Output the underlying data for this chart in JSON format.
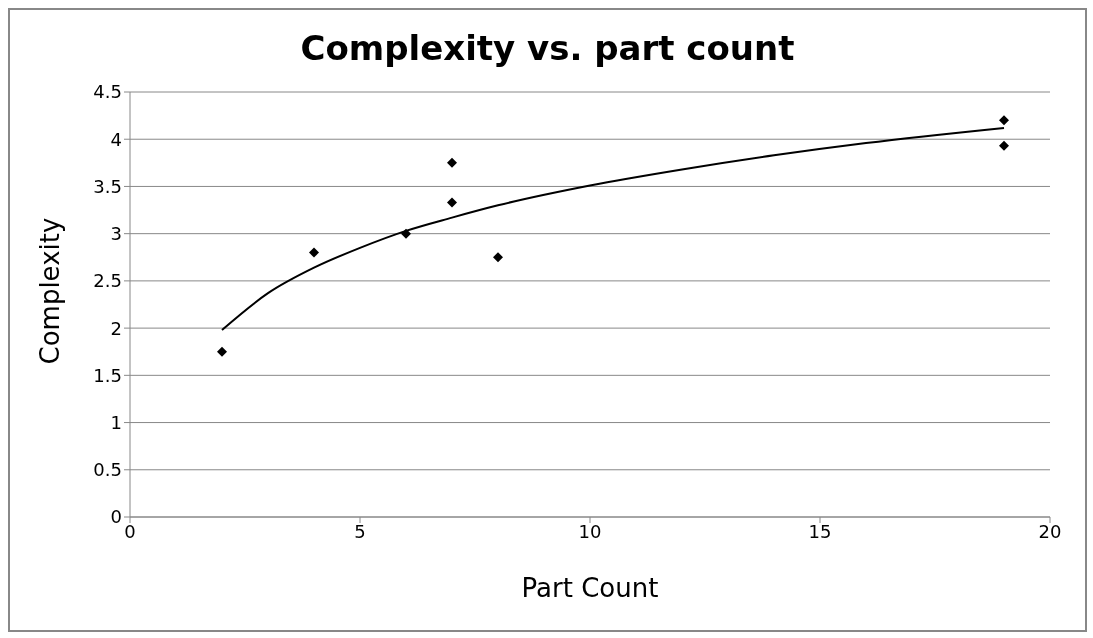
{
  "chart_data": {
    "type": "scatter",
    "title": "Complexity vs. part count",
    "xlabel": "Part Count",
    "ylabel": "Complexity",
    "series": [
      {
        "color": "#000000",
        "marker": "diamond",
        "x": [
          2,
          4,
          6,
          7,
          7,
          8,
          19,
          19
        ],
        "values": [
          1.75,
          2.8,
          3.0,
          3.75,
          3.33,
          2.75,
          4.2,
          3.93
        ]
      },
      {
        "type": "line",
        "color": "#000000",
        "marker": "none",
        "line_style": "solid",
        "x": [
          2,
          3,
          4,
          5,
          6,
          7,
          8,
          10,
          12,
          14,
          16,
          19
        ],
        "values": [
          1.98,
          2.37,
          2.64,
          2.85,
          3.03,
          3.17,
          3.3,
          3.51,
          3.68,
          3.83,
          3.96,
          4.12
        ]
      }
    ],
    "xlim": [
      0,
      20
    ],
    "xticks": [
      0,
      5,
      10,
      15,
      20
    ],
    "ylim": [
      0,
      4.5
    ],
    "yticks": [
      0,
      0.5,
      1,
      1.5,
      2,
      2.5,
      3,
      3.5,
      4,
      4.5
    ],
    "grid": "y"
  }
}
